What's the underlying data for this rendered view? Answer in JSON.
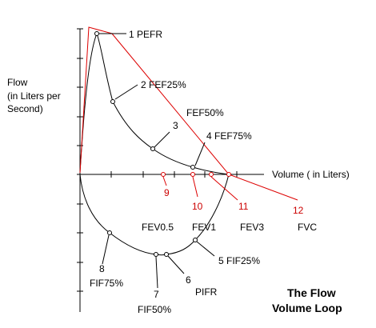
{
  "title_lines": [
    "The Flow",
    "Volume Loop"
  ],
  "axes": {
    "y_label_lines": [
      "Flow",
      "(in Liters per",
      "Second)"
    ],
    "x_label": "Volume ( in Liters)"
  },
  "points": [
    {
      "num": "1",
      "label": "PEFR"
    },
    {
      "num": "2",
      "label": "FEF25%"
    },
    {
      "num": "3",
      "label": "FEF50%"
    },
    {
      "num": "4",
      "label": "FEF75%"
    },
    {
      "num": "5",
      "label": "FIF25%"
    },
    {
      "num": "6",
      "label": "PIFR"
    },
    {
      "num": "7",
      "label": "FIF50%"
    },
    {
      "num": "8",
      "label": "FIF75%"
    },
    {
      "num": "9",
      "label": "FEV0.5"
    },
    {
      "num": "10",
      "label": "FEV1"
    },
    {
      "num": "11",
      "label": "FEV3"
    },
    {
      "num": "12",
      "label": "FVC"
    }
  ],
  "colors": {
    "curve": "#000000",
    "highlight": "#dd0000",
    "highlight_text": "#cc0000",
    "background": "#ffffff"
  }
}
